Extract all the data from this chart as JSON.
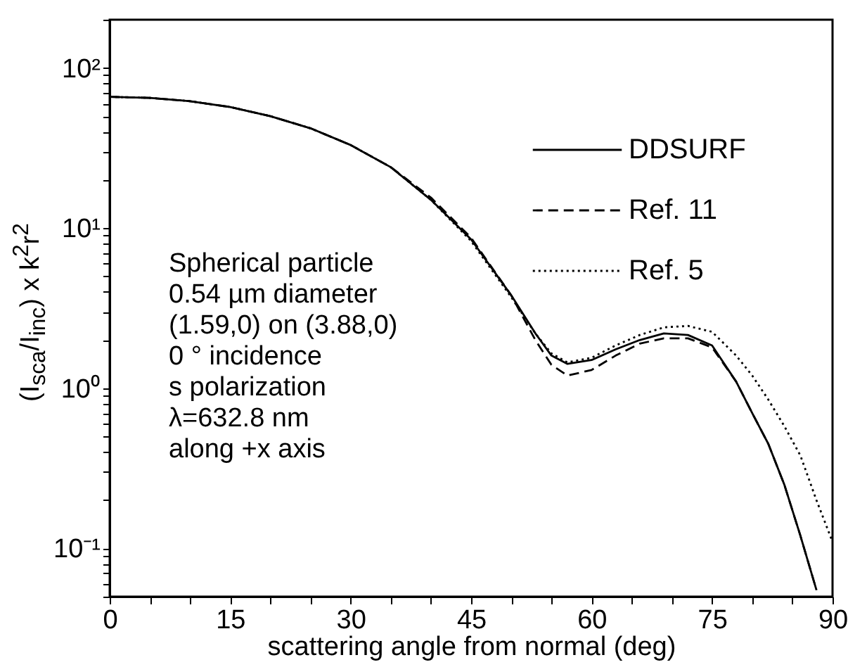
{
  "chart_data": {
    "type": "line",
    "xlabel": "scattering angle from normal (deg)",
    "ylabel": "(I$_{sca}$/I$_{inc}$) x k$^{2}$r$^{2}$",
    "log": "y",
    "legend": "top right",
    "xlim": [
      0,
      90
    ],
    "xticks": [
      0,
      {
        "value": 5,
        "label": null
      },
      {
        "value": 10,
        "label": null
      },
      15,
      {
        "value": 20,
        "label": null
      },
      {
        "value": 25,
        "label": null
      },
      30,
      {
        "value": 35,
        "label": null
      },
      {
        "value": 40,
        "label": null
      },
      45,
      {
        "value": 50,
        "label": null
      },
      {
        "value": 55,
        "label": null
      },
      60,
      {
        "value": 65,
        "label": null
      },
      {
        "value": 70,
        "label": null
      },
      75,
      {
        "value": 80,
        "label": null
      },
      {
        "value": 85,
        "label": null
      },
      90
    ],
    "ylim": [
      0.05,
      200
    ],
    "yticks": [
      {
        "value": 0.05,
        "label": null
      },
      {
        "value": 0.06,
        "label": null
      },
      {
        "value": 0.07,
        "label": null
      },
      {
        "value": 0.08,
        "label": null
      },
      {
        "value": 0.09,
        "label": null
      },
      {
        "value": 0.1,
        "label": "10⁻¹"
      },
      {
        "value": 0.2,
        "label": null
      },
      {
        "value": 0.3,
        "label": null
      },
      {
        "value": 0.4,
        "label": null
      },
      {
        "value": 0.5,
        "label": null
      },
      {
        "value": 0.6,
        "label": null
      },
      {
        "value": 0.7,
        "label": null
      },
      {
        "value": 0.8,
        "label": null
      },
      {
        "value": 0.9,
        "label": null
      },
      {
        "value": 1,
        "label": "10⁰"
      },
      {
        "value": 2,
        "label": null
      },
      {
        "value": 3,
        "label": null
      },
      {
        "value": 4,
        "label": null
      },
      {
        "value": 5,
        "label": null
      },
      {
        "value": 6,
        "label": null
      },
      {
        "value": 7,
        "label": null
      },
      {
        "value": 8,
        "label": null
      },
      {
        "value": 9,
        "label": null
      },
      {
        "value": 10,
        "label": "10¹"
      },
      {
        "value": 20,
        "label": null
      },
      {
        "value": 30,
        "label": null
      },
      {
        "value": 40,
        "label": null
      },
      {
        "value": 50,
        "label": null
      },
      {
        "value": 60,
        "label": null
      },
      {
        "value": 70,
        "label": null
      },
      {
        "value": 80,
        "label": null
      },
      {
        "value": 90,
        "label": null
      },
      {
        "value": 100,
        "label": "10²"
      },
      {
        "value": 200,
        "label": null
      }
    ],
    "x": [
      0,
      5,
      10,
      15,
      20,
      25,
      30,
      35,
      40,
      45,
      50,
      53,
      55,
      57,
      60,
      63,
      66,
      69,
      72,
      75,
      78,
      80,
      82,
      84,
      86,
      88
    ],
    "series": [
      {
        "name": "DDSURF",
        "color": "#000000",
        "line_style": "solid",
        "values": [
          66,
          65,
          62,
          57,
          50,
          42,
          33,
          24,
          15,
          8.5,
          3.8,
          2.2,
          1.6,
          1.42,
          1.5,
          1.75,
          2.0,
          2.2,
          2.15,
          1.85,
          1.1,
          0.7,
          0.45,
          0.25,
          0.12,
          0.055
        ]
      },
      {
        "name": "Ref. 11",
        "color": "#000000",
        "line_style": "dashed",
        "values": [
          66,
          65,
          62,
          57,
          50,
          42,
          33,
          24,
          15.5,
          8.7,
          3.8,
          2.0,
          1.4,
          1.2,
          1.3,
          1.6,
          1.9,
          2.05,
          2.05,
          1.8,
          1.1,
          0.7,
          0.45,
          0.25,
          0.12,
          0.055
        ]
      },
      {
        "name": "Ref. 5",
        "color": "#000000",
        "line_style": "dotted",
        "x": [
          0,
          5,
          10,
          15,
          20,
          25,
          30,
          35,
          40,
          45,
          50,
          53,
          55,
          57,
          60,
          63,
          66,
          69,
          72,
          75,
          78,
          80,
          82,
          84,
          86,
          88,
          90
        ],
        "values": [
          66,
          65,
          62,
          57,
          50,
          42,
          33,
          24,
          15,
          8.3,
          3.7,
          2.2,
          1.65,
          1.45,
          1.55,
          1.85,
          2.15,
          2.4,
          2.45,
          2.25,
          1.6,
          1.2,
          0.85,
          0.58,
          0.38,
          0.2,
          0.11
        ]
      }
    ],
    "annotations": [
      "Spherical particle",
      "0.54 µm diameter",
      "(1.59,0) on (3.88,0)",
      "0 ° incidence",
      "s polarization",
      "λ=632.8 nm",
      "along +x axis"
    ]
  }
}
